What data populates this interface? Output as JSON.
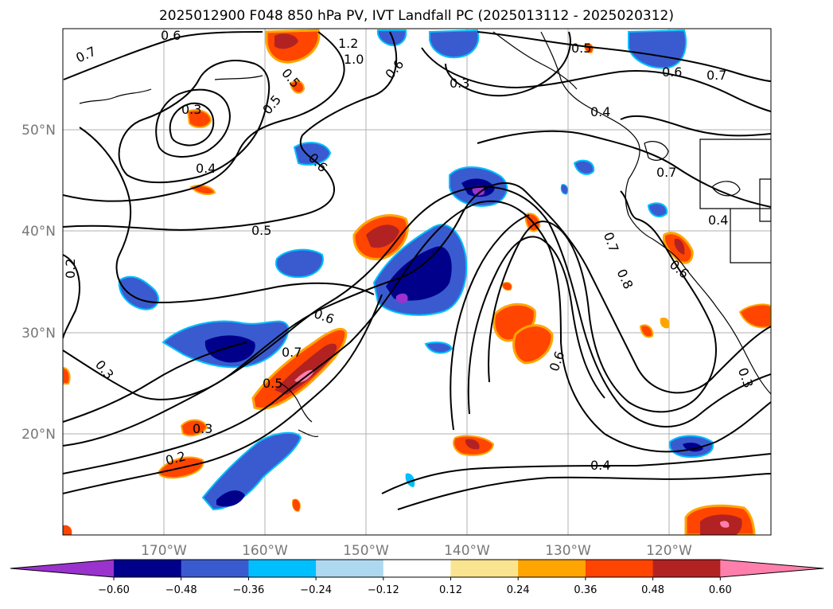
{
  "title": "2025012900 F048 850 hPa PV, IVT Landfall PC (2025013112 - 2025020312)",
  "map": {
    "lat_labels": [
      "50°N",
      "40°N",
      "30°N",
      "20°N"
    ],
    "lon_labels": [
      "170°W",
      "160°W",
      "150°W",
      "140°W",
      "130°W",
      "120°W"
    ],
    "contour_labels": [
      "0.6",
      "0.7",
      "1.2",
      "1.0",
      "0.6",
      "0.5",
      "0.3",
      "0.6",
      "0.7",
      "0.5",
      "0.5",
      "0.3",
      "0.4",
      "0.4",
      "0.6",
      "0.7",
      "0.4",
      "0.5",
      "0.2",
      "0.6",
      "0.7",
      "0.8",
      "0.6",
      "0.7",
      "0.5",
      "0.3",
      "0.3",
      "0.2",
      "0.6",
      "0.4",
      "0.3"
    ]
  },
  "colorbar": {
    "colors": [
      "#9a32cd",
      "#00008b",
      "#3a5bd0",
      "#00bfff",
      "#add8f0",
      "#ffffff",
      "#fbe48f",
      "#ffa500",
      "#ff4500",
      "#b22222",
      "#ff7fac"
    ],
    "tick_labels": [
      "−0.60",
      "−0.48",
      "−0.36",
      "−0.24",
      "−0.12",
      "0.12",
      "0.24",
      "0.36",
      "0.48",
      "0.60"
    ]
  }
}
